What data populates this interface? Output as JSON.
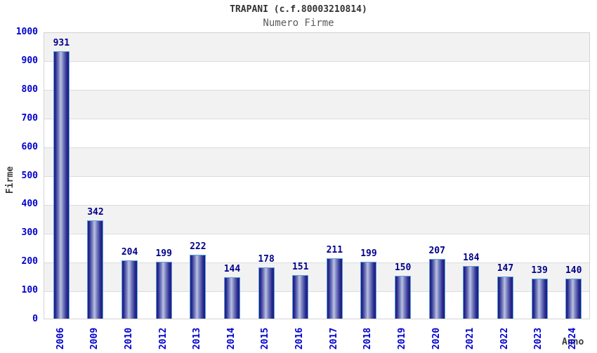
{
  "chart_data": {
    "type": "bar",
    "title": "TRAPANI (c.f.80003210814)",
    "subtitle": "Numero Firme",
    "xlabel": "Anno",
    "ylabel": "Firme",
    "categories": [
      "2006",
      "2009",
      "2010",
      "2012",
      "2013",
      "2014",
      "2015",
      "2016",
      "2017",
      "2018",
      "2019",
      "2020",
      "2021",
      "2022",
      "2023",
      "2024"
    ],
    "values": [
      931,
      342,
      204,
      199,
      222,
      144,
      178,
      151,
      211,
      199,
      150,
      207,
      184,
      147,
      139,
      140
    ],
    "ylim": [
      0,
      1000
    ],
    "yticks": [
      0,
      100,
      200,
      300,
      400,
      500,
      600,
      700,
      800,
      900,
      1000
    ],
    "grid": "horizontal-bands",
    "legend": "none",
    "colors": {
      "bar_dark": "#1b1b7e",
      "bar_mid": "#7d86c2",
      "bar_light": "#bcc2e2",
      "bar_border": "#5aa2de",
      "tick_label": "#0000cd",
      "value_label": "#00008b",
      "gridline": "#dcdcdc",
      "band": "#f2f2f2",
      "plot_border": "#d4d4d4",
      "title": "#333333",
      "subtitle": "#5a5a5a",
      "axis_title": "#3c3c3c"
    }
  }
}
